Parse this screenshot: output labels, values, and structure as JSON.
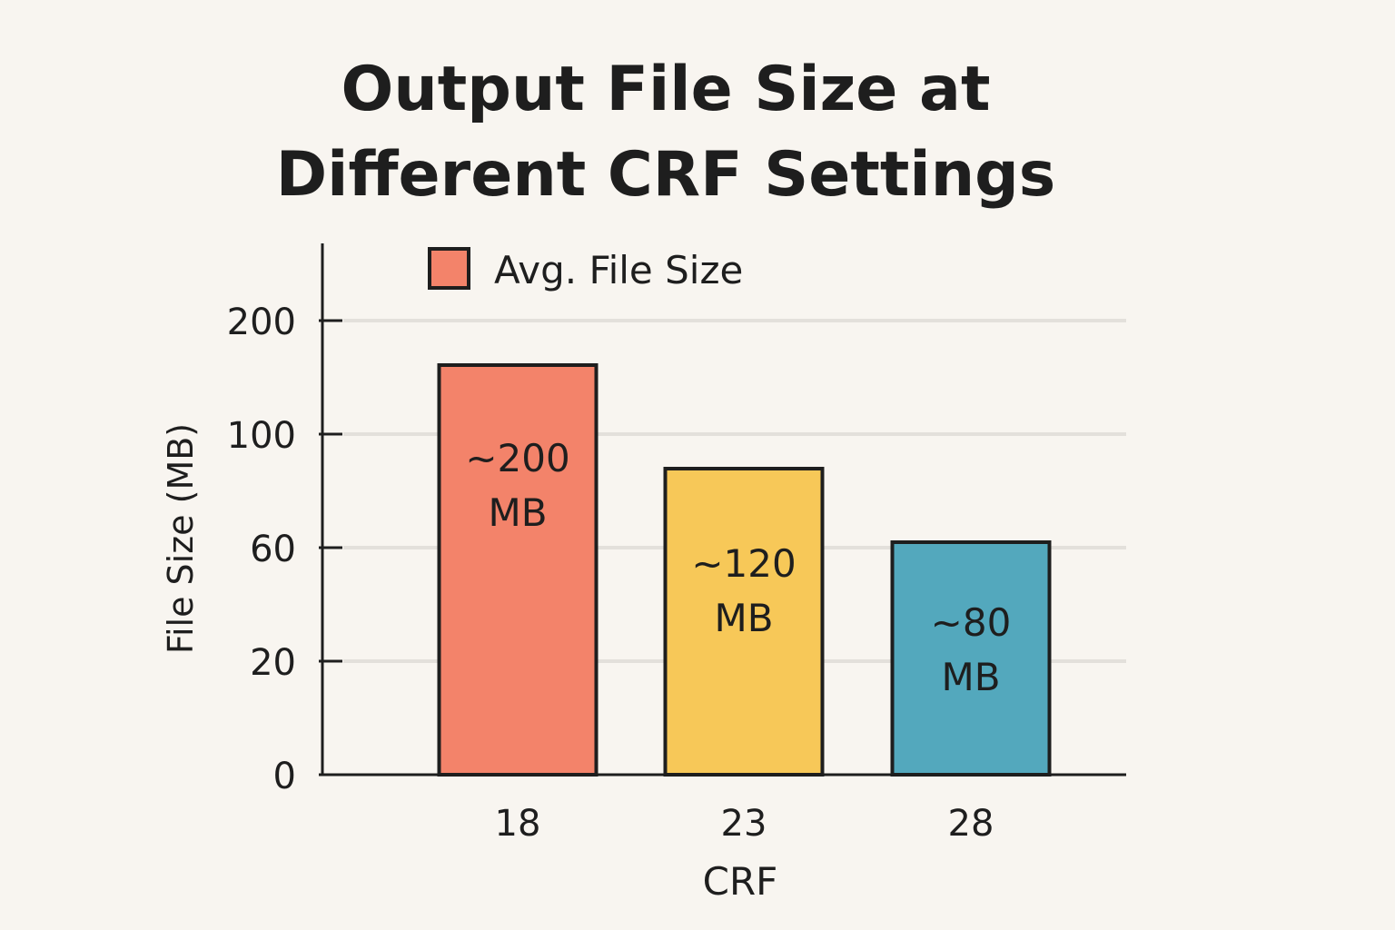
{
  "chart_data": {
    "type": "bar",
    "title_lines": [
      "Output File Size at",
      "Different CRF Settings"
    ],
    "xlabel": "CRF",
    "ylabel": "File Size (MB)",
    "categories": [
      "18",
      "23",
      "28"
    ],
    "series": [
      {
        "name": "Avg. File Size",
        "values": [
          200,
          120,
          80
        ],
        "data_labels": [
          [
            "~200",
            "MB"
          ],
          [
            "~120",
            "MB"
          ],
          [
            "~80",
            "MB"
          ]
        ]
      }
    ],
    "y_ticks": [
      "200",
      "100",
      "60",
      "20",
      "0"
    ],
    "y_scale": "non-uniform",
    "grid": true,
    "legend_position": "top-left",
    "colors": {
      "bars": [
        "#f3836a",
        "#f7c858",
        "#53a8bd"
      ],
      "bar_stroke": "#1e1e1e",
      "grid": "#e3e0db",
      "axis": "#1e1e1e",
      "text": "#1e1e1e",
      "background": "#f8f5f0"
    }
  }
}
